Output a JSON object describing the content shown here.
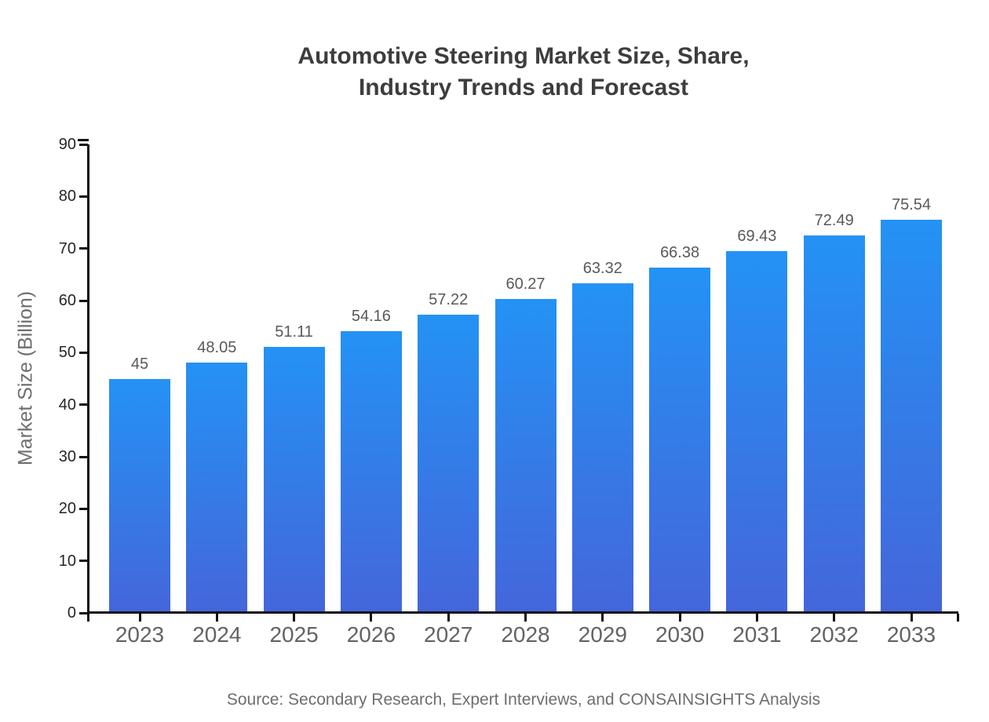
{
  "chart_data": {
    "type": "bar",
    "title_line1": "Automotive Steering Market Size, Share,",
    "title_line2": "Industry Trends and Forecast",
    "ylabel": "Market Size (Billion)",
    "source": "Source: Secondary Research, Expert Interviews, and CONSAINSIGHTS Analysis",
    "categories": [
      "2023",
      "2024",
      "2025",
      "2026",
      "2027",
      "2028",
      "2029",
      "2030",
      "2031",
      "2032",
      "2033"
    ],
    "values": [
      45,
      48.05,
      51.11,
      54.16,
      57.22,
      60.27,
      63.32,
      66.38,
      69.43,
      72.49,
      75.54
    ],
    "value_labels": [
      "45",
      "48.05",
      "51.11",
      "54.16",
      "57.22",
      "60.27",
      "63.32",
      "66.38",
      "69.43",
      "72.49",
      "75.54"
    ],
    "ylim": [
      0,
      90
    ],
    "yticks": [
      0,
      10,
      20,
      30,
      40,
      50,
      60,
      70,
      80,
      90
    ],
    "grid": false,
    "legend_position": "none",
    "colors": {
      "bar_gradient_top": "#2492F4",
      "bar_gradient_bottom": "#4466DB",
      "axis": "#111111",
      "title": "#3d3d3d",
      "y_tick_label": "#262626",
      "x_category_label": "#636363",
      "value_label": "#595959",
      "muted_text": "#6e6e6e"
    }
  }
}
